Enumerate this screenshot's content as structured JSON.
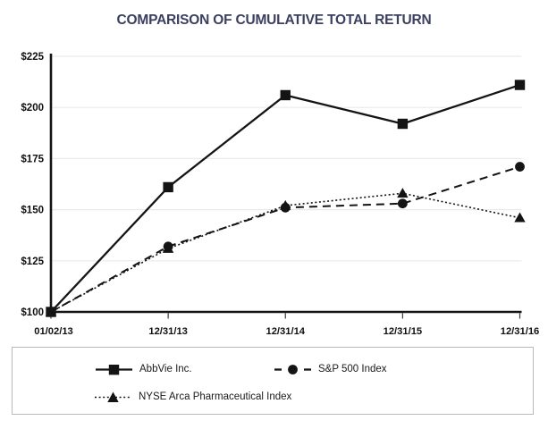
{
  "page": {
    "title": "COMPARISON OF CUMULATIVE TOTAL RETURN"
  },
  "colors": {
    "title_text": "#3b4060",
    "axis_and_series": "#141414",
    "tick_label_text": "#111111",
    "gridline": "#eaeaea",
    "legend_border": "#b9b9b9",
    "background": "#ffffff"
  },
  "chart_data": {
    "type": "line",
    "title": "COMPARISON OF CUMULATIVE TOTAL RETURN",
    "x_labels": [
      "01/02/13",
      "12/31/13",
      "12/31/14",
      "12/31/15",
      "12/31/16"
    ],
    "y_tick_labels": [
      "$100",
      "$125",
      "$150",
      "$175",
      "$200",
      "$225"
    ],
    "y_tick_values": [
      100,
      125,
      150,
      175,
      200,
      225
    ],
    "ylim": [
      100,
      225
    ],
    "grid": true,
    "legend_position": "bottom-box",
    "series": [
      {
        "name": "AbbVie Inc.",
        "marker": "square",
        "line_style": "solid",
        "values": [
          100,
          161,
          206,
          192,
          211
        ]
      },
      {
        "name": "S&P 500 Index",
        "marker": "circle",
        "line_style": "dashed",
        "values": [
          100,
          132,
          151,
          153,
          171
        ]
      },
      {
        "name": "NYSE Arca Pharmaceutical Index",
        "marker": "triangle",
        "line_style": "dotted",
        "values": [
          100,
          131,
          152,
          158,
          146
        ]
      }
    ],
    "draw_order": [
      1,
      2,
      0
    ]
  }
}
